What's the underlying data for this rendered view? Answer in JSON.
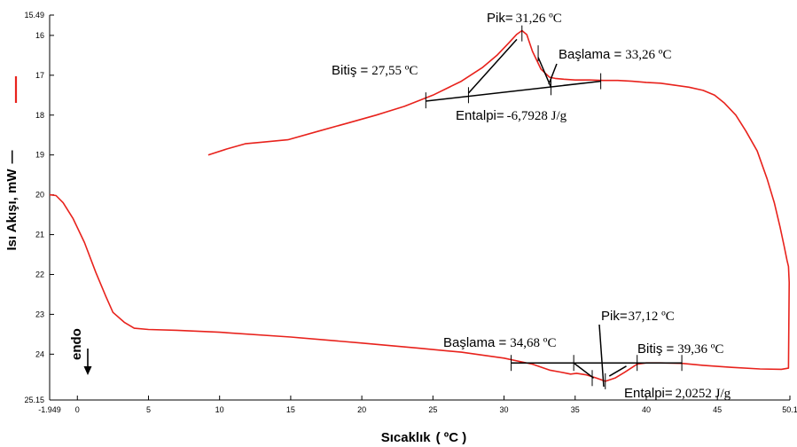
{
  "chart_data": {
    "type": "line",
    "title": "",
    "xlabel": "Sıcaklık",
    "xlabel_unit": "( ºC )",
    "ylabel": "Isı Akışı,  mW",
    "ylabel_marker": "—",
    "xlim": [
      -1.949,
      50.1
    ],
    "ylim": [
      15.49,
      25.15
    ],
    "y_inverted": true,
    "x_ticks": [
      "-1.949",
      "0",
      "5",
      "10",
      "15",
      "20",
      "25",
      "30",
      "35",
      "40",
      "45",
      "50.1"
    ],
    "x_tick_values": [
      -1.949,
      0,
      5,
      10,
      15,
      20,
      25,
      30,
      35,
      40,
      45,
      50.1
    ],
    "y_ticks": [
      "15.49",
      "16",
      "17",
      "18",
      "19",
      "20",
      "21",
      "22",
      "23",
      "24",
      "25.15"
    ],
    "y_tick_values": [
      15.49,
      16,
      17,
      18,
      19,
      20,
      21,
      22,
      23,
      24,
      25.15
    ],
    "grid": false,
    "line_color": "#e8221c",
    "legend_swatch_color": "#e8221c",
    "endo_label": "endo",
    "series": [
      {
        "x": [
          9.2,
          10.5,
          11.8,
          13.0,
          14.8,
          17.0,
          19.0,
          21.0,
          23.0,
          25.0,
          27.0,
          28.5,
          29.5,
          30.3,
          30.9,
          31.26,
          31.6,
          32.0,
          32.6,
          33.2,
          33.6,
          34.2,
          35.0,
          36.0,
          37.0,
          38.0,
          39.0,
          40.0,
          41.0,
          42.0,
          43.0,
          44.0,
          44.8,
          45.5,
          46.3,
          47.0,
          47.8,
          48.5,
          49.0,
          49.4,
          49.7,
          49.9,
          50.0,
          50.05,
          50.0,
          49.5,
          48.0,
          46.0,
          44.0,
          42.5,
          41.0,
          40.0,
          39.36,
          38.5,
          37.8,
          37.12,
          36.5,
          35.8,
          35.1,
          34.68,
          34.0,
          33.2,
          32.0,
          30.0,
          27.0,
          24.0,
          20.0,
          15.0,
          10.0,
          7.0,
          5.0,
          4.0,
          3.3,
          2.5,
          2.0,
          1.3,
          0.5,
          -0.3,
          -1.0,
          -1.5,
          -1.949
        ],
        "y": [
          19.0,
          18.85,
          18.72,
          18.68,
          18.62,
          18.4,
          18.2,
          18.0,
          17.78,
          17.5,
          17.15,
          16.8,
          16.5,
          16.2,
          15.97,
          15.88,
          15.98,
          16.4,
          16.85,
          17.05,
          17.08,
          17.1,
          17.12,
          17.12,
          17.13,
          17.13,
          17.15,
          17.18,
          17.2,
          17.25,
          17.3,
          17.38,
          17.5,
          17.7,
          18.0,
          18.4,
          18.9,
          19.6,
          20.2,
          20.8,
          21.3,
          21.65,
          21.8,
          22.2,
          24.35,
          24.38,
          24.37,
          24.33,
          24.28,
          24.23,
          24.22,
          24.22,
          24.25,
          24.45,
          24.6,
          24.68,
          24.6,
          24.52,
          24.48,
          24.5,
          24.45,
          24.4,
          24.25,
          24.1,
          23.95,
          23.85,
          23.72,
          23.57,
          23.45,
          23.4,
          23.38,
          23.35,
          23.2,
          22.95,
          22.55,
          21.95,
          21.2,
          20.6,
          20.2,
          20.02,
          20.0
        ]
      }
    ],
    "upper_baseline": {
      "x": [
        24.5,
        36.8
      ],
      "y": [
        17.65,
        17.15
      ]
    },
    "upper_tangent": {
      "x": [
        27.5,
        30.9
      ],
      "y": [
        17.45,
        16.1
      ]
    },
    "upper_inflection_tangent": {
      "x": [
        32.4,
        33.3
      ],
      "y": [
        16.55,
        17.3
      ]
    },
    "upper_tick_marks": [
      {
        "x": 24.5,
        "y": 17.63
      },
      {
        "x": 27.5,
        "y": 17.5
      },
      {
        "x": 31.26,
        "y": 15.95
      },
      {
        "x": 32.4,
        "y": 16.45
      },
      {
        "x": 33.3,
        "y": 17.3
      },
      {
        "x": 36.8,
        "y": 17.15
      }
    ],
    "lower_baseline": {
      "x": [
        30.5,
        42.5
      ],
      "y": [
        24.22,
        24.22
      ]
    },
    "lower_tangent": {
      "x": [
        34.9,
        36.3
      ],
      "y": [
        24.22,
        24.6
      ]
    },
    "lower_inflection_tangent": {
      "x": [
        37.4,
        38.6
      ],
      "y": [
        24.55,
        24.3
      ]
    },
    "lower_tick_marks": [
      {
        "x": 30.5,
        "y": 24.22
      },
      {
        "x": 34.9,
        "y": 24.22
      },
      {
        "x": 36.2,
        "y": 24.6
      },
      {
        "x": 37.12,
        "y": 24.68
      },
      {
        "x": 39.36,
        "y": 24.22
      },
      {
        "x": 42.5,
        "y": 24.22
      }
    ],
    "annotations": {
      "upper_peak": {
        "label": "Pik=",
        "value": "31,26 ºC"
      },
      "upper_onset": {
        "label": "Başlama =",
        "value": "33,26 ºC"
      },
      "upper_end": {
        "label": "Bitiş =",
        "value": "27,55 ºC"
      },
      "upper_enthalpy": {
        "label": "Entalpi=",
        "value": "-6,7928 J/g"
      },
      "lower_peak": {
        "label": "Pik=",
        "value": "37,12 ºC"
      },
      "lower_onset": {
        "label": "Başlama =",
        "value": "34,68 ºC"
      },
      "lower_end": {
        "label": "Bitiş =",
        "value": "39,36 ºC"
      },
      "lower_enthalpy": {
        "label": "Entalpi=",
        "value": "2,0252 J/g"
      }
    }
  }
}
